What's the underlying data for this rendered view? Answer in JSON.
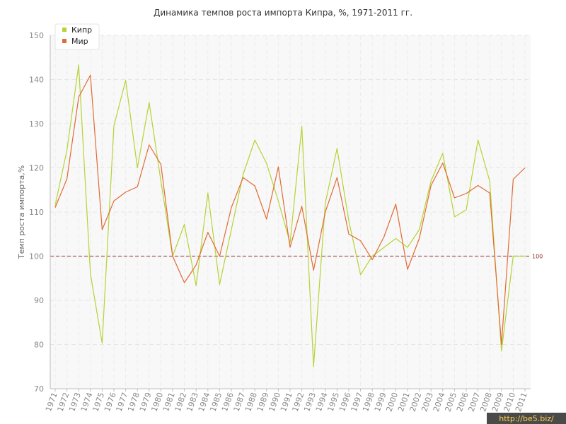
{
  "chart_data": {
    "type": "line",
    "title": "Динамика темпов роста импорта Кипра, %, 1971-2011 гг.",
    "xlabel": "",
    "ylabel": "Темп роста импорта,%",
    "ylim": [
      70,
      150
    ],
    "yticks": [
      70,
      80,
      90,
      100,
      110,
      120,
      130,
      140,
      150
    ],
    "grid": true,
    "legend_position": "top-left",
    "x": [
      "1971",
      "1972",
      "1973",
      "1974",
      "1975",
      "1976",
      "1977",
      "1978",
      "1979",
      "1980",
      "1981",
      "1982",
      "1983",
      "1984",
      "1985",
      "1986",
      "1987",
      "1988",
      "1989",
      "1990",
      "1991",
      "1992",
      "1993",
      "1994",
      "1995",
      "1996",
      "1997",
      "1998",
      "1999",
      "2000",
      "2001",
      "2002",
      "2003",
      "2004",
      "2005",
      "2006",
      "2007",
      "2008",
      "2009",
      "2010",
      "2011"
    ],
    "series": [
      {
        "name": "Кипр",
        "color": "#b5d334",
        "values": [
          111.5,
          124,
          143.3,
          96,
          80.3,
          129.5,
          139.8,
          120,
          134.8,
          117,
          100,
          107.2,
          93.3,
          114.3,
          93.6,
          106,
          118.5,
          126.3,
          121,
          112.5,
          103,
          129.4,
          75,
          112,
          124.4,
          108,
          95.8,
          100,
          102,
          104,
          102,
          106,
          117,
          123.3,
          108.9,
          110.5,
          126.3,
          117,
          78.5,
          100,
          100
        ]
      },
      {
        "name": "Мир",
        "color": "#e06b35",
        "values": [
          111,
          117.5,
          136,
          141,
          106,
          112.5,
          114.5,
          115.7,
          125.2,
          120.8,
          100,
          94,
          98,
          105.4,
          100,
          111,
          117.8,
          115.9,
          108.4,
          120.2,
          102,
          111.3,
          96.8,
          110,
          117.8,
          105,
          103.5,
          99.2,
          104.4,
          111.8,
          97,
          104,
          116,
          121.1,
          113.2,
          114.2,
          116,
          114.3,
          80,
          117.4,
          120
        ]
      }
    ],
    "reference_line": {
      "value": 100,
      "label": "100",
      "color": "#a85a5a"
    }
  },
  "watermark": "http://be5.biz/"
}
